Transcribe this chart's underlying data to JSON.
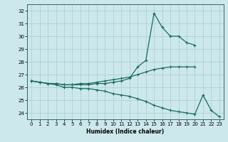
{
  "xlabel": "Humidex (Indice chaleur)",
  "bg_color": "#cce8ec",
  "grid_color": "#a8cccc",
  "line_color": "#1a6b62",
  "line1_y": [
    26.5,
    26.4,
    26.3,
    26.3,
    26.2,
    26.2,
    26.2,
    26.2,
    26.3,
    26.3,
    26.4,
    26.5,
    26.7,
    27.6,
    28.1,
    31.8,
    30.7,
    30.0,
    30.0,
    29.5,
    29.3,
    null,
    null,
    null
  ],
  "line2_y": [
    26.5,
    26.4,
    26.3,
    26.3,
    26.2,
    26.2,
    26.3,
    26.3,
    26.4,
    26.5,
    26.6,
    26.7,
    26.8,
    27.0,
    27.2,
    27.4,
    27.5,
    27.6,
    27.6,
    27.6,
    27.6,
    null,
    null,
    null
  ],
  "line3_y": [
    26.5,
    26.4,
    26.3,
    26.2,
    26.0,
    26.0,
    25.9,
    25.9,
    25.8,
    25.7,
    25.5,
    25.4,
    25.3,
    25.1,
    24.9,
    24.6,
    24.4,
    24.2,
    24.1,
    24.0,
    23.9,
    25.4,
    24.2,
    23.7
  ],
  "ylim": [
    23.5,
    32.5
  ],
  "xlim": [
    -0.5,
    23.5
  ],
  "yticks": [
    24,
    25,
    26,
    27,
    28,
    29,
    30,
    31,
    32
  ],
  "xticks": [
    0,
    1,
    2,
    3,
    4,
    5,
    6,
    7,
    8,
    9,
    10,
    11,
    12,
    13,
    14,
    15,
    16,
    17,
    18,
    19,
    20,
    21,
    22,
    23
  ]
}
